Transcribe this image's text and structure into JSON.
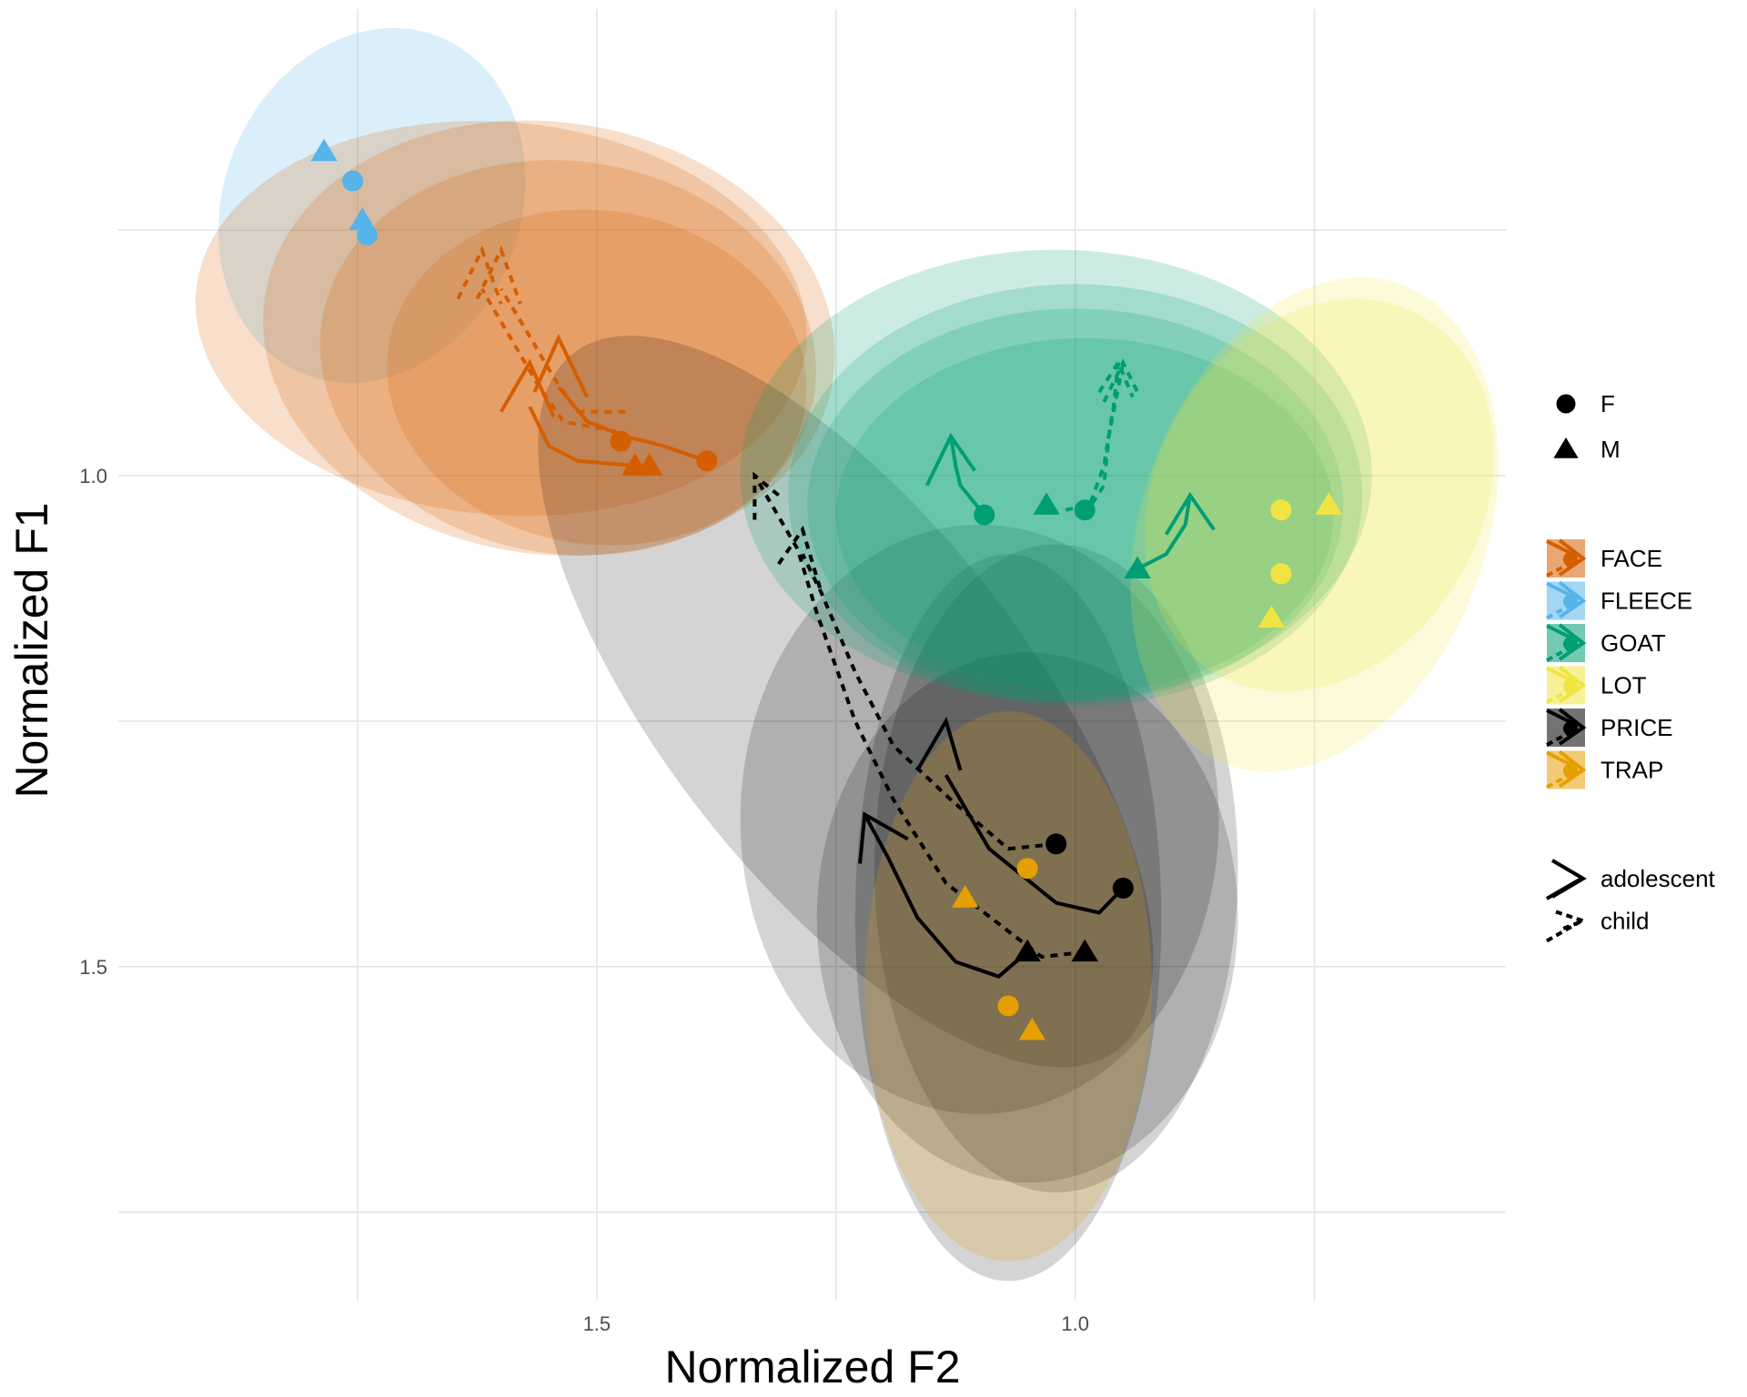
{
  "chart_data": {
    "type": "scatter",
    "xlabel": "Normalized F2",
    "ylabel": "Normalized F1",
    "x_reversed": true,
    "y_reversed": true,
    "xlim": [
      2.0,
      0.55
    ],
    "ylim": [
      0.525,
      1.84
    ],
    "x_gridlines": [
      0.75,
      1.0,
      1.25,
      1.5,
      1.75
    ],
    "y_gridlines": [
      0.75,
      1.0,
      1.25,
      1.5,
      1.75
    ],
    "x_ticks": [
      {
        "value": 1.5,
        "label": "1.5"
      },
      {
        "value": 1.0,
        "label": "1.0"
      }
    ],
    "y_ticks": [
      {
        "value": 1.0,
        "label": "1.0"
      },
      {
        "value": 1.5,
        "label": "1.5"
      }
    ],
    "vowels": [
      {
        "name": "FACE",
        "color": "#D55E00",
        "points": [
          {
            "sex": "F",
            "x": 1.475,
            "y": 0.965
          },
          {
            "sex": "F",
            "x": 1.385,
            "y": 0.985
          },
          {
            "sex": "M",
            "x": 1.46,
            "y": 0.99
          },
          {
            "sex": "M",
            "x": 1.445,
            "y": 0.99
          }
        ],
        "trajectories": [
          {
            "age": "adolescent",
            "path": [
              [
                1.385,
                0.985
              ],
              [
                1.43,
                0.97
              ],
              [
                1.47,
                0.96
              ],
              [
                1.51,
                0.945
              ],
              [
                1.54,
                0.91
              ]
            ],
            "head": [
              [
                1.565,
                0.915
              ],
              [
                1.54,
                0.86
              ],
              [
                1.51,
                0.92
              ]
            ]
          },
          {
            "age": "adolescent",
            "path": [
              [
                1.46,
                0.99
              ],
              [
                1.52,
                0.985
              ],
              [
                1.55,
                0.97
              ],
              [
                1.57,
                0.93
              ]
            ],
            "head": [
              [
                1.6,
                0.935
              ],
              [
                1.57,
                0.885
              ],
              [
                1.545,
                0.94
              ]
            ]
          },
          {
            "age": "child",
            "path": [
              [
                1.48,
                0.955
              ],
              [
                1.535,
                0.945
              ],
              [
                1.56,
                0.91
              ],
              [
                1.59,
                0.86
              ],
              [
                1.62,
                0.81
              ]
            ],
            "head": [
              [
                1.645,
                0.82
              ],
              [
                1.62,
                0.77
              ],
              [
                1.6,
                0.825
              ]
            ]
          },
          {
            "age": "child",
            "path": [
              [
                1.47,
                0.935
              ],
              [
                1.52,
                0.935
              ],
              [
                1.545,
                0.9
              ],
              [
                1.575,
                0.85
              ],
              [
                1.6,
                0.81
              ]
            ],
            "head": [
              [
                1.625,
                0.82
              ],
              [
                1.6,
                0.77
              ],
              [
                1.58,
                0.825
              ]
            ]
          }
        ],
        "ellipses": [
          {
            "cx": 1.5,
            "cy": 0.9,
            "rx": 0.22,
            "ry": 0.17,
            "rot": 8
          },
          {
            "cx": 1.53,
            "cy": 0.88,
            "rx": 0.26,
            "ry": 0.2,
            "rot": 8
          },
          {
            "cx": 1.55,
            "cy": 0.86,
            "rx": 0.3,
            "ry": 0.22,
            "rot": 8
          },
          {
            "cx": 1.6,
            "cy": 0.84,
            "rx": 0.32,
            "ry": 0.2,
            "rot": 5
          }
        ]
      },
      {
        "name": "FLEECE",
        "color": "#56B4E9",
        "points": [
          {
            "sex": "F",
            "x": 1.755,
            "y": 0.7
          },
          {
            "sex": "F",
            "x": 1.74,
            "y": 0.755
          },
          {
            "sex": "M",
            "x": 1.785,
            "y": 0.67
          },
          {
            "sex": "M",
            "x": 1.745,
            "y": 0.74
          }
        ],
        "trajectories": [],
        "ellipses": [
          {
            "cx": 1.735,
            "cy": 0.725,
            "rx": 0.155,
            "ry": 0.185,
            "rot": 22
          }
        ]
      },
      {
        "name": "GOAT",
        "color": "#009E73",
        "points": [
          {
            "sex": "F",
            "x": 1.095,
            "y": 1.04
          },
          {
            "sex": "F",
            "x": 0.99,
            "y": 1.035
          },
          {
            "sex": "M",
            "x": 1.03,
            "y": 1.03
          },
          {
            "sex": "M",
            "x": 0.935,
            "y": 1.095
          }
        ],
        "trajectories": [
          {
            "age": "adolescent",
            "path": [
              [
                1.095,
                1.04
              ],
              [
                1.12,
                1.01
              ],
              [
                1.125,
                0.99
              ],
              [
                1.13,
                0.96
              ]
            ],
            "head": [
              [
                1.155,
                1.01
              ],
              [
                1.13,
                0.96
              ],
              [
                1.105,
                0.995
              ]
            ]
          },
          {
            "age": "adolescent",
            "path": [
              [
                0.935,
                1.095
              ],
              [
                0.905,
                1.08
              ],
              [
                0.885,
                1.05
              ],
              [
                0.88,
                1.02
              ]
            ],
            "head": [
              [
                0.905,
                1.06
              ],
              [
                0.88,
                1.02
              ],
              [
                0.855,
                1.055
              ]
            ]
          },
          {
            "age": "child",
            "path": [
              [
                1.01,
                1.035
              ],
              [
                0.985,
                1.03
              ],
              [
                0.97,
                0.99
              ],
              [
                0.96,
                0.93
              ],
              [
                0.955,
                0.885
              ]
            ],
            "head": [
              [
                0.975,
                0.915
              ],
              [
                0.955,
                0.885
              ],
              [
                0.94,
                0.92
              ]
            ]
          },
          {
            "age": "child",
            "path": [
              [
                0.99,
                1.04
              ],
              [
                0.97,
                1.01
              ],
              [
                0.965,
                0.96
              ],
              [
                0.955,
                0.91
              ],
              [
                0.95,
                0.885
              ]
            ],
            "head": [
              [
                0.97,
                0.925
              ],
              [
                0.95,
                0.885
              ],
              [
                0.935,
                0.915
              ]
            ]
          }
        ],
        "ellipses": [
          {
            "cx": 1.02,
            "cy": 1.0,
            "rx": 0.33,
            "ry": 0.23,
            "rot": 0
          },
          {
            "cx": 1.0,
            "cy": 1.02,
            "rx": 0.3,
            "ry": 0.215,
            "rot": 0
          },
          {
            "cx": 1.0,
            "cy": 1.03,
            "rx": 0.28,
            "ry": 0.2,
            "rot": 0
          },
          {
            "cx": 0.99,
            "cy": 1.04,
            "rx": 0.26,
            "ry": 0.18,
            "rot": 0
          }
        ]
      },
      {
        "name": "LOT",
        "color": "#F0E442",
        "points": [
          {
            "sex": "F",
            "x": 0.785,
            "y": 1.035
          },
          {
            "sex": "F",
            "x": 0.785,
            "y": 1.1
          },
          {
            "sex": "M",
            "x": 0.735,
            "y": 1.03
          },
          {
            "sex": "M",
            "x": 0.795,
            "y": 1.145
          }
        ],
        "trajectories": [],
        "ellipses": [
          {
            "cx": 0.75,
            "cy": 1.05,
            "rx": 0.18,
            "ry": 0.26,
            "rot": 20
          },
          {
            "cx": 0.745,
            "cy": 1.02,
            "rx": 0.17,
            "ry": 0.21,
            "rot": 30
          }
        ]
      },
      {
        "name": "PRICE",
        "color": "#000000",
        "points": [
          {
            "sex": "F",
            "x": 1.02,
            "y": 1.375
          },
          {
            "sex": "F",
            "x": 0.95,
            "y": 1.42
          },
          {
            "sex": "M",
            "x": 1.05,
            "y": 1.485
          },
          {
            "sex": "M",
            "x": 0.99,
            "y": 1.485
          }
        ],
        "trajectories": [
          {
            "age": "adolescent",
            "path": [
              [
                0.95,
                1.42
              ],
              [
                0.975,
                1.445
              ],
              [
                1.02,
                1.435
              ],
              [
                1.09,
                1.38
              ],
              [
                1.12,
                1.33
              ],
              [
                1.135,
                1.305
              ]
            ],
            "head": [
              [
                1.165,
                1.3
              ],
              [
                1.135,
                1.25
              ],
              [
                1.12,
                1.3
              ]
            ]
          },
          {
            "age": "adolescent",
            "path": [
              [
                1.05,
                1.485
              ],
              [
                1.08,
                1.51
              ],
              [
                1.125,
                1.495
              ],
              [
                1.165,
                1.45
              ],
              [
                1.195,
                1.39
              ],
              [
                1.22,
                1.345
              ]
            ],
            "head": [
              [
                1.225,
                1.395
              ],
              [
                1.22,
                1.345
              ],
              [
                1.175,
                1.37
              ]
            ]
          },
          {
            "age": "child",
            "path": [
              [
                1.02,
                1.375
              ],
              [
                1.07,
                1.38
              ],
              [
                1.13,
                1.33
              ],
              [
                1.19,
                1.275
              ],
              [
                1.23,
                1.2
              ],
              [
                1.265,
                1.12
              ],
              [
                1.285,
                1.08
              ]
            ],
            "head": [
              [
                1.31,
                1.09
              ],
              [
                1.285,
                1.055
              ],
              [
                1.265,
                1.12
              ]
            ]
          },
          {
            "age": "child",
            "path": [
              [
                0.99,
                1.485
              ],
              [
                1.035,
                1.49
              ],
              [
                1.075,
                1.46
              ],
              [
                1.135,
                1.415
              ],
              [
                1.19,
                1.33
              ],
              [
                1.23,
                1.25
              ],
              [
                1.27,
                1.14
              ],
              [
                1.29,
                1.075
              ],
              [
                1.335,
                1.0
              ]
            ],
            "head": [
              [
                1.31,
                1.02
              ],
              [
                1.335,
                1.0
              ],
              [
                1.335,
                1.045
              ]
            ]
          }
        ],
        "ellipses": [
          {
            "cx": 1.24,
            "cy": 1.23,
            "rx": 0.19,
            "ry": 0.45,
            "rot": -38
          },
          {
            "cx": 1.1,
            "cy": 1.35,
            "rx": 0.25,
            "ry": 0.3,
            "rot": 0
          },
          {
            "cx": 1.05,
            "cy": 1.45,
            "rx": 0.22,
            "ry": 0.27,
            "rot": 0
          },
          {
            "cx": 1.02,
            "cy": 1.4,
            "rx": 0.19,
            "ry": 0.33,
            "rot": 0
          },
          {
            "cx": 1.07,
            "cy": 1.45,
            "rx": 0.16,
            "ry": 0.37,
            "rot": 0
          }
        ]
      },
      {
        "name": "TRAP",
        "color": "#E69F00",
        "points": [
          {
            "sex": "F",
            "x": 1.05,
            "y": 1.4
          },
          {
            "sex": "F",
            "x": 1.07,
            "y": 1.54
          },
          {
            "sex": "M",
            "x": 1.115,
            "y": 1.43
          },
          {
            "sex": "M",
            "x": 1.045,
            "y": 1.565
          }
        ],
        "trajectories": [],
        "ellipses": [
          {
            "cx": 1.07,
            "cy": 1.52,
            "rx": 0.15,
            "ry": 0.28,
            "rot": 0
          }
        ]
      }
    ],
    "legends": {
      "shape": [
        {
          "symbol": "circle",
          "label": "F"
        },
        {
          "symbol": "triangle",
          "label": "M"
        }
      ],
      "vowel": [
        "FACE",
        "FLEECE",
        "GOAT",
        "LOT",
        "PRICE",
        "TRAP"
      ],
      "linetype": [
        {
          "style": "solid",
          "label": "adolescent"
        },
        {
          "style": "dashed",
          "label": "child"
        }
      ]
    }
  }
}
